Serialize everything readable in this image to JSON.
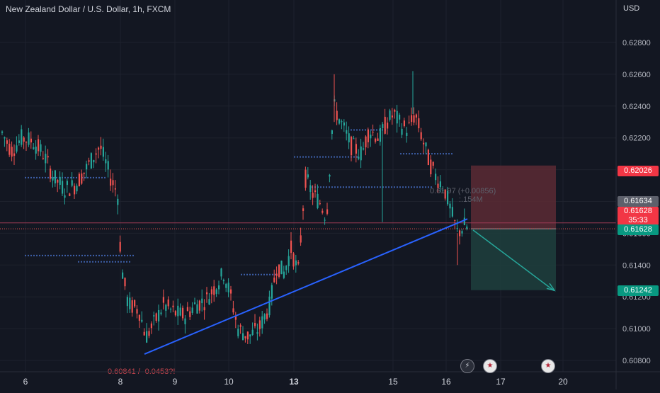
{
  "header": {
    "symbol_title": "New Zealand Dollar / U.S. Dollar, 1h, FXCM",
    "currency_label": "USD"
  },
  "chart_data": {
    "type": "candlestick",
    "title": "New Zealand Dollar / U.S. Dollar, 1h, FXCM",
    "ylabel": "USD",
    "ylim": [
      0.6074,
      0.6292
    ],
    "y_ticks": [
      0.608,
      0.61,
      0.612,
      0.614,
      0.616,
      0.618,
      0.62,
      0.622,
      0.624,
      0.626,
      0.628
    ],
    "y_tick_labels": [
      "0.60800",
      "0.61000",
      "0.61200",
      "0.61400",
      "0.61600",
      "0.61800",
      "0.62000",
      "0.62200",
      "0.62400",
      "0.62600",
      "0.62800"
    ],
    "x_tick_labels": [
      "6",
      "8",
      "9",
      "10",
      "13",
      "15",
      "16",
      "17",
      "20"
    ],
    "x_tick_bold": [
      "13"
    ],
    "grid": true,
    "colors": {
      "background": "#131722",
      "up": "#26a69a",
      "down": "#ef5350",
      "trendline": "#2962ff",
      "level_dots": "#3d5fa8",
      "stop_zone": "#5c2a34",
      "target_zone": "#1e3d3c",
      "projection": "#26a69a"
    },
    "price_labels": [
      {
        "text": "0.62026",
        "value": 0.62026,
        "color": "#f23645"
      },
      {
        "text": "0.61634",
        "value": 0.61634,
        "color": "#5d606b"
      },
      {
        "text": "0.61628",
        "value": 0.61628,
        "color": "#f23645",
        "sub": "35:33"
      },
      {
        "text": "0.61628",
        "value": 0.61628,
        "color": "#089981"
      },
      {
        "text": "0.61242",
        "value": 0.61242,
        "color": "#089981"
      }
    ],
    "position": {
      "type": "short",
      "entry": 0.61628,
      "stop": 0.62026,
      "target": 0.61242
    },
    "annotations": {
      "position_text": "0.61 97 (+0.00856)",
      "position_sub": ":.154M",
      "low_label": "0.60841 / -0.0453?!"
    },
    "trendline_points": [
      [
        0.6084,
        "8"
      ],
      [
        0.6169,
        "16"
      ]
    ],
    "candles_ohlc_approx": [
      {
        "day": "6",
        "open": 0.6226,
        "close": 0.6212
      },
      {
        "day": "8",
        "open": 0.6214,
        "close": 0.6128
      },
      {
        "day": "9",
        "open": 0.6104,
        "close": 0.6108
      },
      {
        "day": "10",
        "open": 0.6138,
        "close": 0.6112
      },
      {
        "day": "13",
        "open": 0.6174,
        "close": 0.6228
      },
      {
        "day": "15",
        "open": 0.6235,
        "close": 0.6222
      },
      {
        "day": "16",
        "open": 0.6195,
        "close": 0.6163
      }
    ],
    "events": [
      "lightning",
      "us-flag",
      "us-flag"
    ]
  }
}
